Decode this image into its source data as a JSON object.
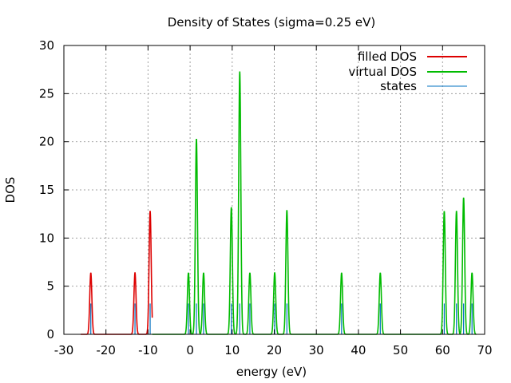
{
  "chart_data": {
    "type": "line",
    "title": "Density of States (sigma=0.25 eV)",
    "xlabel": "energy (eV)",
    "ylabel": "DOS",
    "xlim": [
      -30,
      70
    ],
    "ylim": [
      0,
      30
    ],
    "xticks": [
      -30,
      -20,
      -10,
      0,
      10,
      20,
      30,
      40,
      50,
      60,
      70
    ],
    "yticks": [
      0,
      5,
      10,
      15,
      20,
      25,
      30
    ],
    "grid": true,
    "legend_position": "top-right",
    "sigma": 0.25,
    "series": [
      {
        "name": "filled DOS",
        "color": "#dd0000",
        "kind": "dos",
        "range": [
          -26,
          -9
        ],
        "peaks": [
          {
            "x": -23.6,
            "y": 6.4
          },
          {
            "x": -13.1,
            "y": 6.4
          },
          {
            "x": -9.5,
            "y": 12.8
          }
        ]
      },
      {
        "name": "virtual DOS",
        "color": "#00bb00",
        "kind": "dos",
        "range": [
          -9,
          68
        ],
        "peaks": [
          {
            "x": -0.4,
            "y": 6.4
          },
          {
            "x": 1.5,
            "y": 20.3
          },
          {
            "x": 3.2,
            "y": 6.4
          },
          {
            "x": 9.8,
            "y": 13.2
          },
          {
            "x": 11.8,
            "y": 27.3
          },
          {
            "x": 14.2,
            "y": 6.4
          },
          {
            "x": 20.1,
            "y": 6.4
          },
          {
            "x": 23.0,
            "y": 12.9
          },
          {
            "x": 36.0,
            "y": 6.4
          },
          {
            "x": 45.2,
            "y": 6.4
          },
          {
            "x": 60.4,
            "y": 12.8
          },
          {
            "x": 63.3,
            "y": 12.8
          },
          {
            "x": 65.0,
            "y": 14.2
          },
          {
            "x": 67.0,
            "y": 6.4
          }
        ]
      },
      {
        "name": "states",
        "color": "#0070c0",
        "kind": "sticks",
        "x": [
          -23.6,
          -13.1,
          -9.5,
          -0.4,
          1.5,
          3.2,
          9.8,
          11.8,
          14.2,
          20.1,
          23.0,
          36.0,
          45.2,
          60.4,
          63.3,
          65.0,
          67.0
        ],
        "y": [
          3.2,
          3.2,
          3.2,
          3.2,
          3.2,
          3.2,
          3.2,
          3.2,
          3.2,
          3.2,
          3.2,
          3.2,
          3.2,
          3.2,
          3.2,
          3.2,
          3.2
        ]
      }
    ]
  }
}
